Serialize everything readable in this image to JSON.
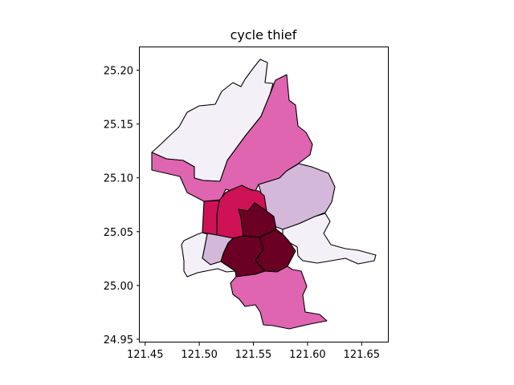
{
  "chart_data": {
    "type": "choropleth",
    "title": "cycle thief",
    "xlabel": "",
    "ylabel": "",
    "xlim": [
      121.445,
      121.675
    ],
    "ylim": [
      24.947,
      25.222
    ],
    "x_ticks": [
      "121.45",
      "121.50",
      "121.55",
      "121.60",
      "121.65"
    ],
    "x_tick_values": [
      121.45,
      121.5,
      121.55,
      121.6,
      121.65
    ],
    "y_ticks": [
      "24.95",
      "25.00",
      "25.05",
      "25.10",
      "25.15",
      "25.20"
    ],
    "y_tick_values": [
      24.95,
      25.0,
      25.05,
      25.1,
      25.15,
      25.2
    ],
    "colormap": "PuRd",
    "colors": {
      "lightest": "#f4f0f7",
      "light": "#d4b8d9",
      "medium": "#df65b0",
      "dark": "#ce1256",
      "darkest": "#6a0024",
      "edge": "#000000"
    },
    "regions": [
      {
        "id": "beitou",
        "level": "lightest"
      },
      {
        "id": "shilin",
        "level": "medium"
      },
      {
        "id": "neihu",
        "level": "light"
      },
      {
        "id": "nangang",
        "level": "lightest"
      },
      {
        "id": "zhongshan",
        "level": "dark"
      },
      {
        "id": "datong",
        "level": "dark"
      },
      {
        "id": "songshan",
        "level": "darkest"
      },
      {
        "id": "xinyi",
        "level": "darkest"
      },
      {
        "id": "daan",
        "level": "darkest"
      },
      {
        "id": "zhongzheng",
        "level": "light"
      },
      {
        "id": "wanhua",
        "level": "lightest"
      },
      {
        "id": "wenshan",
        "level": "medium"
      }
    ]
  }
}
